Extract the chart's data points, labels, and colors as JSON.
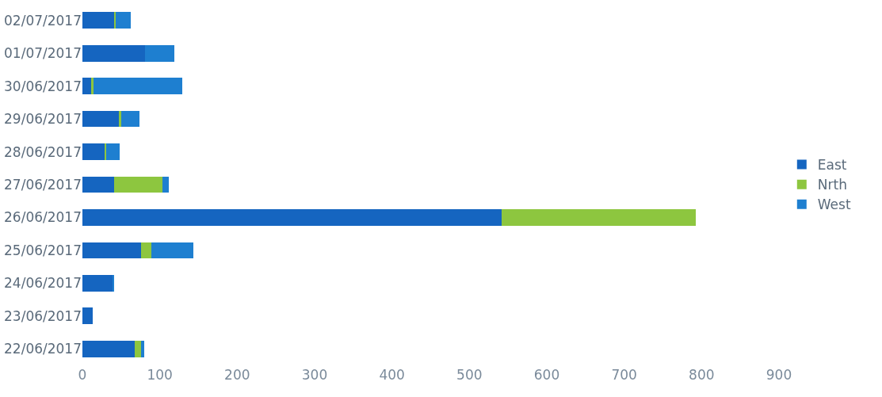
{
  "chart_data": {
    "type": "bar",
    "orientation": "horizontal",
    "stacked": true,
    "categories": [
      "02/07/2017",
      "01/07/2017",
      "30/06/2017",
      "29/06/2017",
      "28/06/2017",
      "27/06/2017",
      "26/06/2017",
      "25/06/2017",
      "24/06/2017",
      "23/06/2017",
      "22/06/2017"
    ],
    "series": [
      {
        "name": "East",
        "color": "#1565c0",
        "values": [
          41,
          81,
          12,
          48,
          29,
          41,
          542,
          76,
          39,
          13,
          68
        ]
      },
      {
        "name": "Nrth",
        "color": "#8dc63f",
        "values": [
          2,
          0,
          2,
          2,
          2,
          62,
          250,
          13,
          0,
          0,
          8
        ]
      },
      {
        "name": "West",
        "color": "#1e7fd0",
        "values": [
          19,
          38,
          115,
          24,
          17,
          9,
          0,
          54,
          2,
          0,
          4
        ]
      }
    ],
    "xlim": [
      0,
      900
    ],
    "xticks": [
      0,
      100,
      200,
      300,
      400,
      500,
      600,
      700,
      800,
      900
    ],
    "legend": "right"
  }
}
